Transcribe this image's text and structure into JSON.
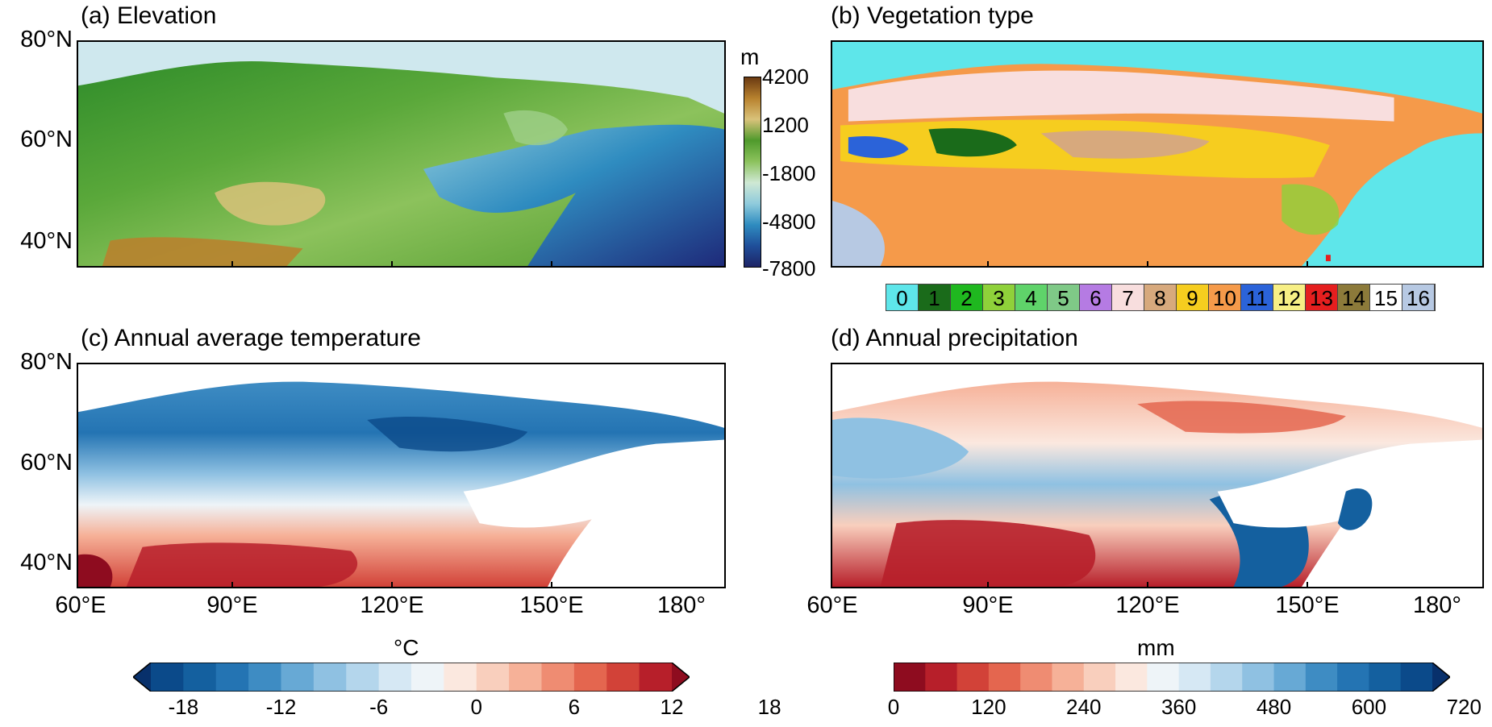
{
  "panels": {
    "a": {
      "title": "(a) Elevation"
    },
    "b": {
      "title": "(b) Vegetation type"
    },
    "c": {
      "title": "(c) Annual average temperature"
    },
    "d": {
      "title": "(d) Annual precipitation"
    }
  },
  "axes": {
    "lat_labels": [
      "80°N",
      "60°N",
      "40°N"
    ],
    "lon_labels": [
      "60°E",
      "90°E",
      "120°E",
      "150°E",
      "180°"
    ]
  },
  "elevation_colorbar": {
    "unit": "m",
    "labels": [
      "4200",
      "1200",
      "-1800",
      "-4800",
      "-7800"
    ],
    "colors": [
      "#6b3a12",
      "#b8822e",
      "#d9c27a",
      "#4f9a2c",
      "#8cc25c",
      "#cfe8d4",
      "#8fcbdc",
      "#2f8cc0",
      "#1f4f9a",
      "#1e2466"
    ]
  },
  "vegetation_legend": {
    "classes": [
      {
        "label": "0",
        "color": "#5ee6ea"
      },
      {
        "label": "1",
        "color": "#1a6b1a"
      },
      {
        "label": "2",
        "color": "#1fb81f"
      },
      {
        "label": "3",
        "color": "#8fd13a"
      },
      {
        "label": "4",
        "color": "#5fd36a"
      },
      {
        "label": "5",
        "color": "#7fc987"
      },
      {
        "label": "6",
        "color": "#b57be3"
      },
      {
        "label": "7",
        "color": "#f8dede"
      },
      {
        "label": "8",
        "color": "#d7a97d"
      },
      {
        "label": "9",
        "color": "#f6cd1f"
      },
      {
        "label": "10",
        "color": "#f59a4a"
      },
      {
        "label": "11",
        "color": "#2b63d9"
      },
      {
        "label": "12",
        "color": "#f7ef85"
      },
      {
        "label": "13",
        "color": "#e51f1f"
      },
      {
        "label": "14",
        "color": "#8c7a3a"
      },
      {
        "label": "15",
        "color": "#ffffff"
      },
      {
        "label": "16",
        "color": "#b7c9e3"
      }
    ]
  },
  "temperature_colorbar": {
    "unit": "°C",
    "tick_labels": [
      "-18",
      "-12",
      "-6",
      "0",
      "6",
      "12",
      "18"
    ],
    "colors": [
      "#08306b",
      "#0b4a8a",
      "#14609f",
      "#2474b3",
      "#3e8cc3",
      "#67a9d5",
      "#8fc1e2",
      "#b4d6ec",
      "#d6e8f4",
      "#eef4f8",
      "#fbe8df",
      "#f9cfbd",
      "#f6b198",
      "#ef8c72",
      "#e4664f",
      "#d24238",
      "#b71f2a",
      "#8e0c1f"
    ]
  },
  "precipitation_colorbar": {
    "unit": "mm",
    "tick_labels": [
      "0",
      "120",
      "240",
      "360",
      "480",
      "600",
      "720"
    ],
    "colors": [
      "#8e0c1f",
      "#b71f2a",
      "#d24238",
      "#e4664f",
      "#ef8c72",
      "#f6b198",
      "#f9cfbd",
      "#fbe8df",
      "#eef4f8",
      "#d6e8f4",
      "#b4d6ec",
      "#8fc1e2",
      "#67a9d5",
      "#3e8cc3",
      "#2474b3",
      "#14609f",
      "#0b4a8a",
      "#08306b"
    ]
  }
}
